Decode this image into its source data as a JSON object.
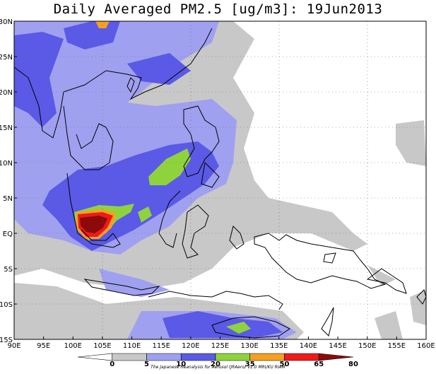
{
  "title": "Daily Averaged PM2.5 [ug/m3]: 19Jun2013",
  "lat_labels": [
    "30N",
    "25N",
    "20N",
    "15N",
    "10N",
    "5N",
    "EQ",
    "5S",
    "10S",
    "15S"
  ],
  "lon_labels": [
    "90E",
    "95E",
    "100E",
    "105E",
    "110E",
    "115E",
    "120E",
    "125E",
    "130E",
    "135E",
    "140E",
    "145E",
    "150E",
    "155E",
    "160E"
  ],
  "colorbar": {
    "breaks": [
      "0",
      "5",
      "10",
      "20",
      "35",
      "50",
      "65",
      "80"
    ],
    "colors": [
      "#ffffff",
      "#c8c8c8",
      "#a0a0f0",
      "#5a5ae6",
      "#8fd33c",
      "#f5a020",
      "#ee1a1a",
      "#8c0a0a"
    ]
  },
  "credit": "The Japanese Reanalysis for Aerosol (JRAero) v1.0 MRI/KU RIAM"
}
